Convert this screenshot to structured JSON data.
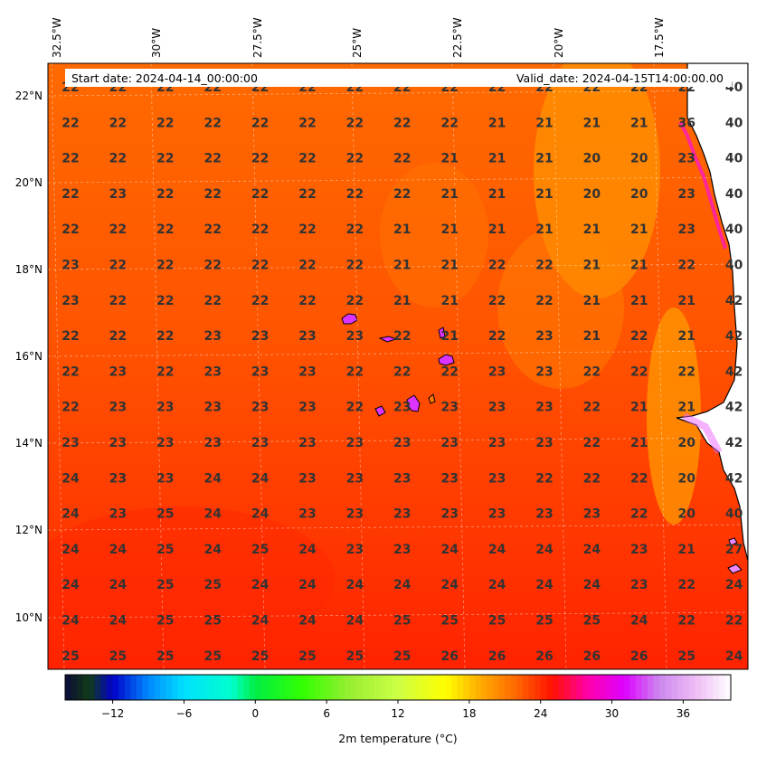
{
  "header": {
    "start_date": "Start date: 2024-04-14_00:00:00",
    "valid_date": "Valid_date: 2024-04-15T14:00:00.00"
  },
  "longitude_labels": [
    "32.5°W",
    "30°W",
    "27.5°W",
    "25°W",
    "22.5°W",
    "20°W",
    "17.5°W"
  ],
  "latitude_labels": [
    "22°N",
    "20°N",
    "18°N",
    "16°N",
    "14°N",
    "12°N",
    "10°N"
  ],
  "grid_values": [
    [
      "22",
      "22",
      "22",
      "22",
      "22",
      "22",
      "22",
      "22",
      "22",
      "22",
      "22",
      "22",
      "22",
      "22",
      "40"
    ],
    [
      "22",
      "22",
      "22",
      "22",
      "22",
      "22",
      "22",
      "22",
      "22",
      "21",
      "21",
      "21",
      "21",
      "36",
      "40"
    ],
    [
      "22",
      "22",
      "22",
      "22",
      "22",
      "22",
      "22",
      "22",
      "21",
      "21",
      "21",
      "20",
      "20",
      "23",
      "40"
    ],
    [
      "22",
      "23",
      "22",
      "22",
      "22",
      "22",
      "22",
      "22",
      "21",
      "21",
      "21",
      "20",
      "20",
      "23",
      "40"
    ],
    [
      "22",
      "22",
      "22",
      "22",
      "22",
      "22",
      "22",
      "21",
      "21",
      "21",
      "21",
      "21",
      "21",
      "23",
      "40"
    ],
    [
      "23",
      "22",
      "22",
      "22",
      "22",
      "22",
      "22",
      "21",
      "21",
      "22",
      "22",
      "21",
      "21",
      "22",
      "40"
    ],
    [
      "23",
      "22",
      "22",
      "22",
      "22",
      "22",
      "22",
      "21",
      "21",
      "22",
      "22",
      "21",
      "21",
      "21",
      "42"
    ],
    [
      "22",
      "22",
      "22",
      "23",
      "23",
      "23",
      "23",
      "22",
      "21",
      "22",
      "23",
      "21",
      "22",
      "21",
      "42"
    ],
    [
      "22",
      "23",
      "22",
      "23",
      "23",
      "23",
      "22",
      "22",
      "22",
      "23",
      "23",
      "22",
      "22",
      "22",
      "42"
    ],
    [
      "22",
      "23",
      "23",
      "23",
      "23",
      "23",
      "22",
      "23",
      "23",
      "23",
      "23",
      "22",
      "21",
      "21",
      "42"
    ],
    [
      "23",
      "23",
      "23",
      "23",
      "23",
      "23",
      "23",
      "23",
      "23",
      "23",
      "23",
      "22",
      "21",
      "20",
      "42"
    ],
    [
      "24",
      "23",
      "23",
      "24",
      "24",
      "23",
      "23",
      "23",
      "23",
      "23",
      "22",
      "22",
      "22",
      "20",
      "42"
    ],
    [
      "24",
      "23",
      "25",
      "24",
      "24",
      "23",
      "23",
      "23",
      "23",
      "23",
      "23",
      "23",
      "22",
      "20",
      "40"
    ],
    [
      "24",
      "24",
      "25",
      "24",
      "25",
      "24",
      "23",
      "23",
      "24",
      "24",
      "24",
      "24",
      "23",
      "21",
      "27"
    ],
    [
      "24",
      "24",
      "25",
      "25",
      "24",
      "24",
      "24",
      "24",
      "24",
      "24",
      "24",
      "24",
      "23",
      "22",
      "24"
    ],
    [
      "24",
      "24",
      "25",
      "25",
      "24",
      "24",
      "24",
      "25",
      "25",
      "25",
      "25",
      "25",
      "24",
      "22",
      "22"
    ],
    [
      "25",
      "25",
      "25",
      "25",
      "25",
      "25",
      "25",
      "25",
      "26",
      "26",
      "26",
      "26",
      "26",
      "25",
      "24"
    ]
  ],
  "colorbar": {
    "label": "2m temperature ($^\\circ$C)",
    "label_display": "2m temperature (°C)",
    "ticks": [
      "−12",
      "−6",
      "0",
      "6",
      "12",
      "18",
      "24",
      "30",
      "36"
    ],
    "range": [
      -16,
      40
    ],
    "tick_values": [
      -12,
      -6,
      0,
      6,
      12,
      18,
      24,
      30,
      36
    ],
    "stops": [
      {
        "v": -16,
        "c": "#0a0a3a"
      },
      {
        "v": -14,
        "c": "#123c14"
      },
      {
        "v": -12,
        "c": "#0000c8"
      },
      {
        "v": -9,
        "c": "#0088ff"
      },
      {
        "v": -6,
        "c": "#00e0ff"
      },
      {
        "v": -2,
        "c": "#00ffcc"
      },
      {
        "v": 0,
        "c": "#00ee44"
      },
      {
        "v": 4,
        "c": "#33ff00"
      },
      {
        "v": 8,
        "c": "#99ee33"
      },
      {
        "v": 12,
        "c": "#ccff44"
      },
      {
        "v": 16,
        "c": "#ffff00"
      },
      {
        "v": 19,
        "c": "#ffaa00"
      },
      {
        "v": 22,
        "c": "#ff6600"
      },
      {
        "v": 25,
        "c": "#ff1100"
      },
      {
        "v": 28,
        "c": "#ff00aa"
      },
      {
        "v": 31,
        "c": "#dd00ff"
      },
      {
        "v": 34,
        "c": "#cc88ee"
      },
      {
        "v": 37,
        "c": "#eebbf4"
      },
      {
        "v": 40,
        "c": "#ffffff"
      }
    ]
  },
  "colors": {
    "ocean_base": "#ff5a00",
    "land": "#ffffff",
    "coast": "#000000"
  }
}
